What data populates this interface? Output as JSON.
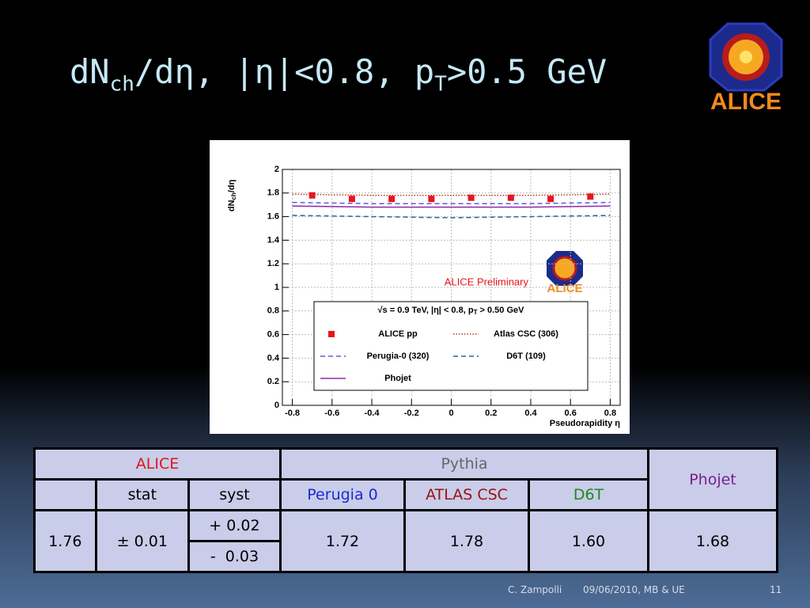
{
  "title": [
    "dN",
    "ch",
    "/dη, |η|<0.8, p",
    "T",
    ">0.5 GeV"
  ],
  "logo_text": "ALICE",
  "chart_data": {
    "type": "line",
    "y_label": [
      "dN",
      "ch",
      "/dη"
    ],
    "x_label": "Pseudorapidity η",
    "annotation": "ALICE Preliminary",
    "legend_title": [
      "√s = 0.9 TeV, |η| < 0.8, p",
      "T",
      " > 0.50 GeV"
    ],
    "xlim": [
      -0.85,
      0.85
    ],
    "xticks": [
      -0.8,
      -0.6,
      -0.4,
      -0.2,
      0,
      0.2,
      0.4,
      0.6,
      0.8
    ],
    "ylim": [
      0,
      2
    ],
    "yticks": [
      0,
      0.2,
      0.4,
      0.6,
      0.8,
      1,
      1.2,
      1.4,
      1.6,
      1.8,
      2
    ],
    "grid": true,
    "series": [
      {
        "name": "ALICE pp",
        "color": "#e8141b",
        "style": "markers",
        "x": [
          -0.7,
          -0.5,
          -0.3,
          -0.1,
          0.1,
          0.3,
          0.5,
          0.7
        ],
        "values": [
          1.78,
          1.75,
          1.75,
          1.75,
          1.76,
          1.76,
          1.75,
          1.77
        ]
      },
      {
        "name": "Atlas CSC (306)",
        "color": "#c0392b",
        "style": "dotted",
        "x": [
          -0.8,
          -0.4,
          0,
          0.4,
          0.8
        ],
        "values": [
          1.79,
          1.78,
          1.78,
          1.78,
          1.79
        ]
      },
      {
        "name": "Perugia-0 (320)",
        "color": "#5560d8",
        "style": "dashed",
        "x": [
          -0.8,
          -0.4,
          0,
          0.4,
          0.8
        ],
        "values": [
          1.72,
          1.71,
          1.71,
          1.71,
          1.72
        ]
      },
      {
        "name": "D6T (109)",
        "color": "#1f6f8b",
        "style": "dashed",
        "x": [
          -0.8,
          -0.4,
          0,
          0.4,
          0.8
        ],
        "values": [
          1.61,
          1.6,
          1.59,
          1.6,
          1.61
        ]
      },
      {
        "name": "Phojet",
        "color": "#8e2aa8",
        "style": "solid",
        "x": [
          -0.8,
          -0.4,
          0,
          0.4,
          0.8
        ],
        "values": [
          1.69,
          1.68,
          1.68,
          1.68,
          1.69
        ]
      }
    ]
  },
  "table": {
    "header": [
      "ALICE",
      "Pythia",
      "Phojet"
    ],
    "subheader": [
      "stat",
      "syst",
      "Perugia 0",
      "ATLAS CSC",
      "D6T"
    ],
    "row": {
      "alice": "1.76",
      "stat": "± 0.01",
      "syst_up": "+ 0.02",
      "syst_down": "-  0.03",
      "perugia": "1.72",
      "atlas": "1.78",
      "d6t": "1.60",
      "phojet": "1.68"
    }
  },
  "footer": {
    "author": "C. Zampolli",
    "event": "09/06/2010, MB & UE",
    "page": "11"
  }
}
